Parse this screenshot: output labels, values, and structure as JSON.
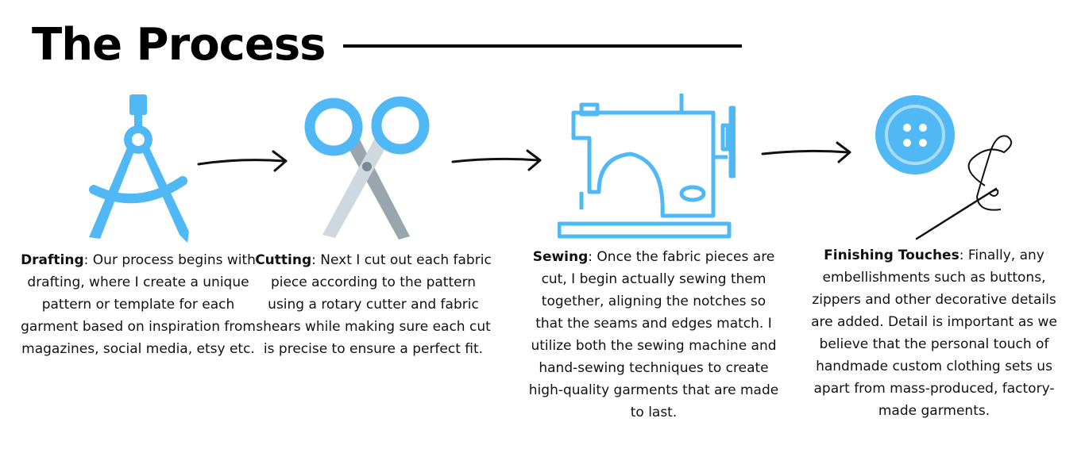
{
  "header": {
    "title": "The Process"
  },
  "colors": {
    "accent": "#4fb8f5",
    "ink": "#111111"
  },
  "steps": [
    {
      "name": "Drafting",
      "icon": "drafting-compass-icon",
      "description": ": Our process begins with drafting, where I create a unique pattern or template for each garment based on inspiration from magazines, social media, etsy etc."
    },
    {
      "name": "Cutting",
      "icon": "scissors-icon",
      "description": ": Next I cut out each fabric piece according to the pattern using a rotary cutter and fabric shears while making sure each cut is precise to ensure a perfect fit."
    },
    {
      "name": "Sewing",
      "icon": "sewing-machine-icon",
      "description": ": Once the fabric pieces are cut, I begin actually sewing them together, aligning the notches so that the seams and edges match. I utilize both the sewing machine and hand-sewing techniques to create high-quality garments that are made to last."
    },
    {
      "name": "Finishing Touches",
      "icon": "button-and-needle-icon",
      "description": ": Finally, any embellishments such as buttons, zippers and other decorative details are added. Detail is important as we believe that the personal touch of handmade custom clothing sets us apart from mass-produced, factory-made garments."
    }
  ]
}
